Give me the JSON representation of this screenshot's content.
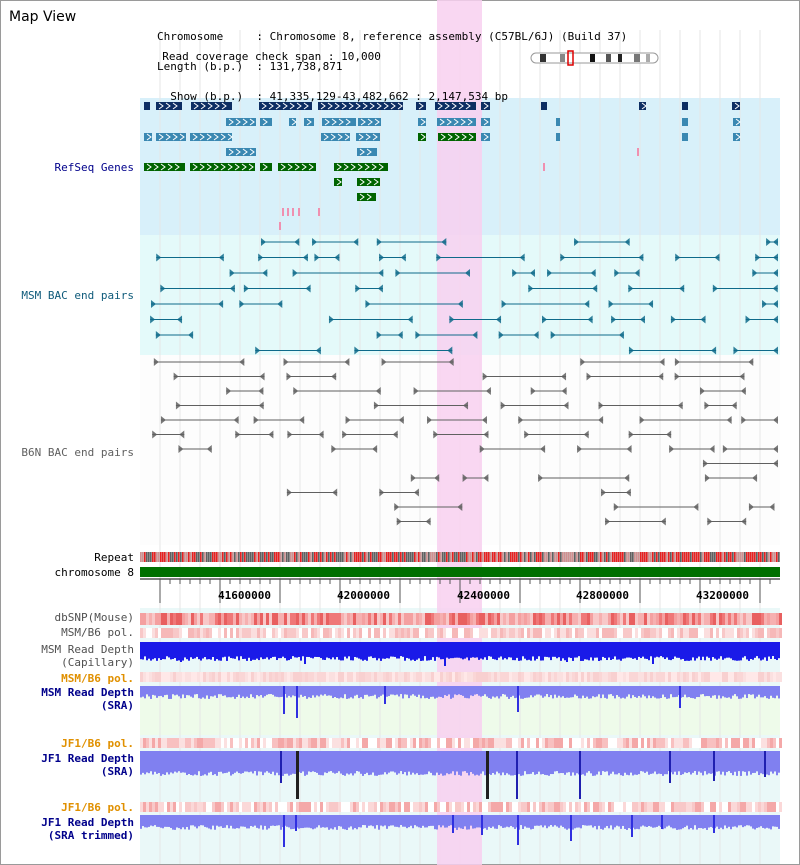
{
  "title": "Map View",
  "info": {
    "chromosome_label": "Chromosome",
    "chromosome_value": "Chromosome 8, reference assembly (C57BL/6J) (Build 37)",
    "length_label": "Length (b.p.)",
    "length_value": "131,738,871",
    "show_label": "Show (b.p.)",
    "show_value": "41,335,129-43,482,662 : 2,147,534 bp",
    "coverage_label": "Read coverage check span",
    "coverage_value": "10,000"
  },
  "tracks": {
    "refseq": "RefSeq Genes",
    "msm_bac": "MSM BAC end pairs",
    "b6n_bac": "B6N BAC end pairs",
    "repeat": "Repeat",
    "chromosome": "chromosome 8",
    "dbsnp": "dbSNP(Mouse)",
    "msm_b6_pol": "MSM/B6 pol.",
    "msm_read_depth_cap_1": "MSM Read Depth",
    "msm_read_depth_cap_2": "(Capillary)",
    "msm_b6_pol_2": "MSM/B6 pol.",
    "msm_read_depth_sra_1": "MSM Read Depth",
    "msm_read_depth_sra_2": "(SRA)",
    "jf1_b6_pol": "JF1/B6 pol.",
    "jf1_read_depth_1": "JF1 Read Depth",
    "jf1_read_depth_2": "(SRA)",
    "jf1_b6_pol_2": "JF1/B6 pol.",
    "jf1_trim_1": "JF1 Read Depth",
    "jf1_trim_2": "(SRA trimmed)"
  },
  "axis": {
    "ticks": [
      "41600000",
      "42000000",
      "42400000",
      "42800000",
      "43200000"
    ]
  },
  "colors": {
    "highlight": "#f8d0f0",
    "refseq_bg": "#d8f0fa",
    "bac_bg": "#e4fafa",
    "lower_bg": "#eaf8f8",
    "gene_dark": "#0d2e63",
    "gene_mid": "#3a88b2",
    "gene_green": "#006400",
    "msm_line": "#0e6a8a",
    "b6n_line": "#606060",
    "chrom_green": "#007000",
    "depth_blue": "#1a1ae8",
    "depth_light": "#8080f0",
    "label_blue": "#00008b",
    "label_orange": "#e09000",
    "label_gray": "#505050"
  }
}
